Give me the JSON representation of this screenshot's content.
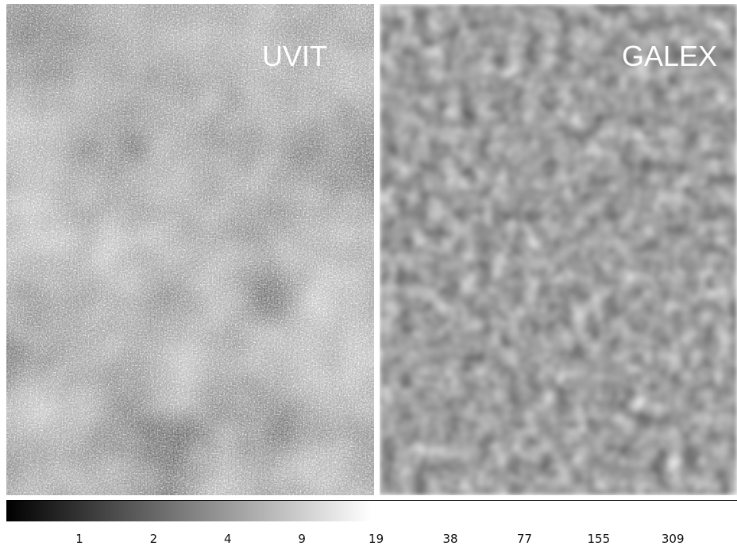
{
  "panels": [
    {
      "label": "UVIT"
    },
    {
      "label": "GALEX"
    }
  ],
  "colorbar": {
    "ticks": [
      1,
      2,
      4,
      9,
      19,
      38,
      77,
      155,
      309
    ]
  }
}
